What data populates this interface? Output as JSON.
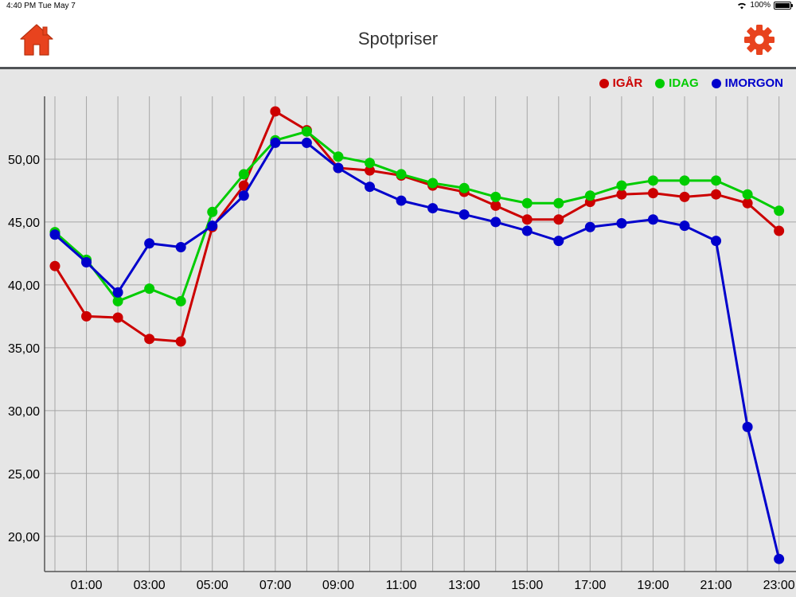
{
  "status_bar": {
    "time": "4:40 PM",
    "date": "Tue May 7",
    "battery": "100%"
  },
  "nav": {
    "title": "Spotpriser",
    "home_icon": "home-icon",
    "settings_icon": "gear-icon",
    "accent": "#e8431e"
  },
  "colors": {
    "igar": "#cc0000",
    "idag": "#00cc00",
    "imorgon": "#0000cc"
  },
  "chart_data": {
    "type": "line",
    "title": "",
    "xlabel": "",
    "ylabel": "",
    "x": [
      "00:00",
      "01:00",
      "02:00",
      "03:00",
      "04:00",
      "05:00",
      "06:00",
      "07:00",
      "08:00",
      "09:00",
      "10:00",
      "11:00",
      "12:00",
      "13:00",
      "14:00",
      "15:00",
      "16:00",
      "17:00",
      "18:00",
      "19:00",
      "20:00",
      "21:00",
      "22:00",
      "23:00"
    ],
    "x_tick_labels": [
      "01:00",
      "03:00",
      "05:00",
      "07:00",
      "09:00",
      "11:00",
      "13:00",
      "15:00",
      "17:00",
      "19:00",
      "21:00",
      "23:00"
    ],
    "y_tick_labels": [
      "20,00",
      "25,00",
      "30,00",
      "35,00",
      "40,00",
      "45,00",
      "50,00"
    ],
    "y_ticks": [
      20,
      25,
      30,
      35,
      40,
      45,
      50
    ],
    "ylim": [
      17.2,
      55.0
    ],
    "grid": true,
    "legend_position": "top-right",
    "series": [
      {
        "name": "IGÅR",
        "color": "#cc0000",
        "values": [
          41.5,
          37.5,
          37.4,
          35.7,
          35.5,
          44.6,
          47.9,
          53.8,
          52.3,
          49.3,
          49.1,
          48.7,
          47.9,
          47.4,
          46.3,
          45.2,
          45.2,
          46.6,
          47.2,
          47.3,
          47.0,
          47.2,
          46.5,
          44.3
        ]
      },
      {
        "name": "IDAG",
        "color": "#00cc00",
        "values": [
          44.2,
          42.0,
          38.7,
          39.7,
          38.7,
          45.8,
          48.8,
          51.5,
          52.2,
          50.2,
          49.7,
          48.8,
          48.1,
          47.7,
          47.0,
          46.5,
          46.5,
          47.1,
          47.9,
          48.3,
          48.3,
          48.3,
          47.2,
          45.9
        ]
      },
      {
        "name": "IMORGON",
        "color": "#0000cc",
        "values": [
          44.0,
          41.8,
          39.4,
          43.3,
          43.0,
          44.7,
          47.1,
          51.3,
          51.3,
          49.3,
          47.8,
          46.7,
          46.1,
          45.6,
          45.0,
          44.3,
          43.5,
          44.6,
          44.9,
          45.2,
          44.7,
          43.5,
          28.7,
          18.2
        ]
      }
    ]
  }
}
